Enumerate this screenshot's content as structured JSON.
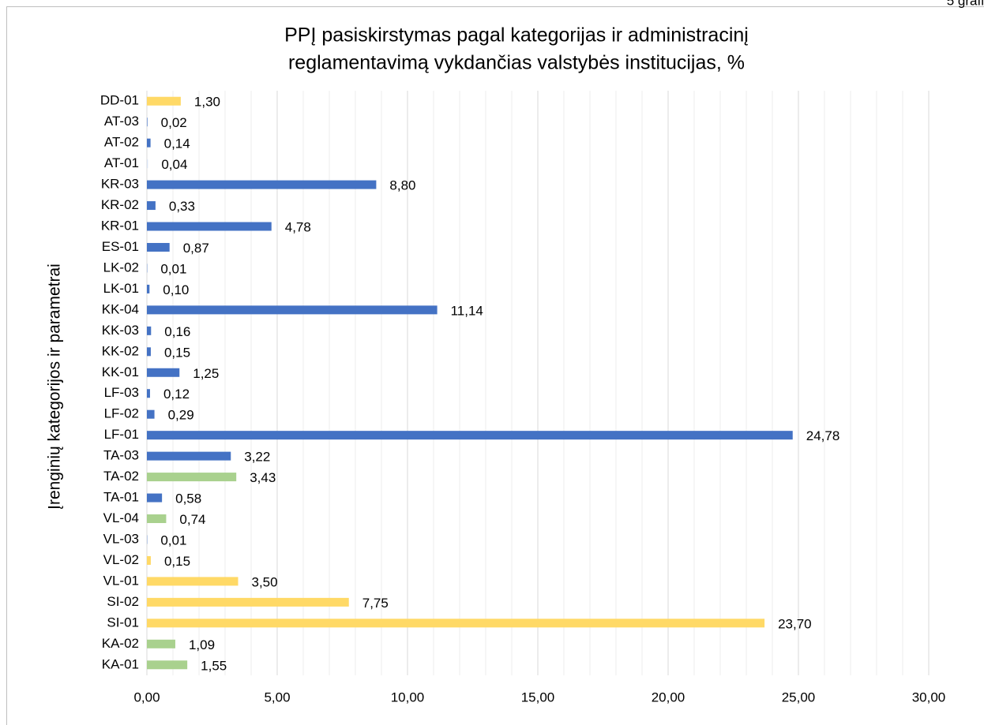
{
  "corner_text": "5 grafi",
  "chart_data": {
    "type": "bar",
    "orientation": "horizontal",
    "title": [
      "PPĮ pasiskirstymas pagal kategorijas ir administracinį",
      "reglamentavimą vykdančias valstybės institucijas, %"
    ],
    "ylabel": "Įrenginių kategorijos ir parametrai",
    "categories": [
      "DD-01",
      "AT-03",
      "AT-02",
      "AT-01",
      "KR-03",
      "KR-02",
      "KR-01",
      "ES-01",
      "LK-02",
      "LK-01",
      "KK-04",
      "KK-03",
      "KK-02",
      "KK-01",
      "LF-03",
      "LF-02",
      "LF-01",
      "TA-03",
      "TA-02",
      "TA-01",
      "VL-04",
      "VL-03",
      "VL-02",
      "VL-01",
      "SI-02",
      "SI-01",
      "KA-02",
      "KA-01"
    ],
    "values": [
      1.3,
      0.02,
      0.14,
      0.04,
      8.8,
      0.33,
      4.78,
      0.87,
      0.01,
      0.1,
      11.14,
      0.16,
      0.15,
      1.25,
      0.12,
      0.29,
      24.78,
      3.22,
      3.43,
      0.58,
      0.74,
      0.01,
      0.15,
      3.5,
      7.75,
      23.7,
      1.09,
      1.55
    ],
    "value_labels": [
      "1,30",
      "0,02",
      "0,14",
      "0,04",
      "8,80",
      "0,33",
      "4,78",
      "0,87",
      "0,01",
      "0,10",
      "11,14",
      "0,16",
      "0,15",
      "1,25",
      "0,12",
      "0,29",
      "24,78",
      "3,22",
      "3,43",
      "0,58",
      "0,74",
      "0,01",
      "0,15",
      "3,50",
      "7,75",
      "23,70",
      "1,09",
      "1,55"
    ],
    "colors": [
      "#ffd966",
      "#4472c4",
      "#4472c4",
      "#dae3f3",
      "#4472c4",
      "#4472c4",
      "#4472c4",
      "#4472c4",
      "#4472c4",
      "#4472c4",
      "#4472c4",
      "#4472c4",
      "#4472c4",
      "#4472c4",
      "#4472c4",
      "#4472c4",
      "#4472c4",
      "#4472c4",
      "#a9d18e",
      "#4472c4",
      "#a9d18e",
      "#4472c4",
      "#ffd966",
      "#ffd966",
      "#ffd966",
      "#ffd966",
      "#a9d18e",
      "#a9d18e"
    ],
    "xlim": [
      0,
      30
    ],
    "xticks": [
      {
        "value": 0,
        "label": "0,00"
      },
      {
        "value": 5,
        "label": "5,00"
      },
      {
        "value": 10,
        "label": "10,00"
      },
      {
        "value": 15,
        "label": "15,00"
      },
      {
        "value": 20,
        "label": "20,00"
      },
      {
        "value": 25,
        "label": "25,00"
      },
      {
        "value": 30,
        "label": "30,00"
      }
    ],
    "grid": true,
    "minor_grid": true
  }
}
